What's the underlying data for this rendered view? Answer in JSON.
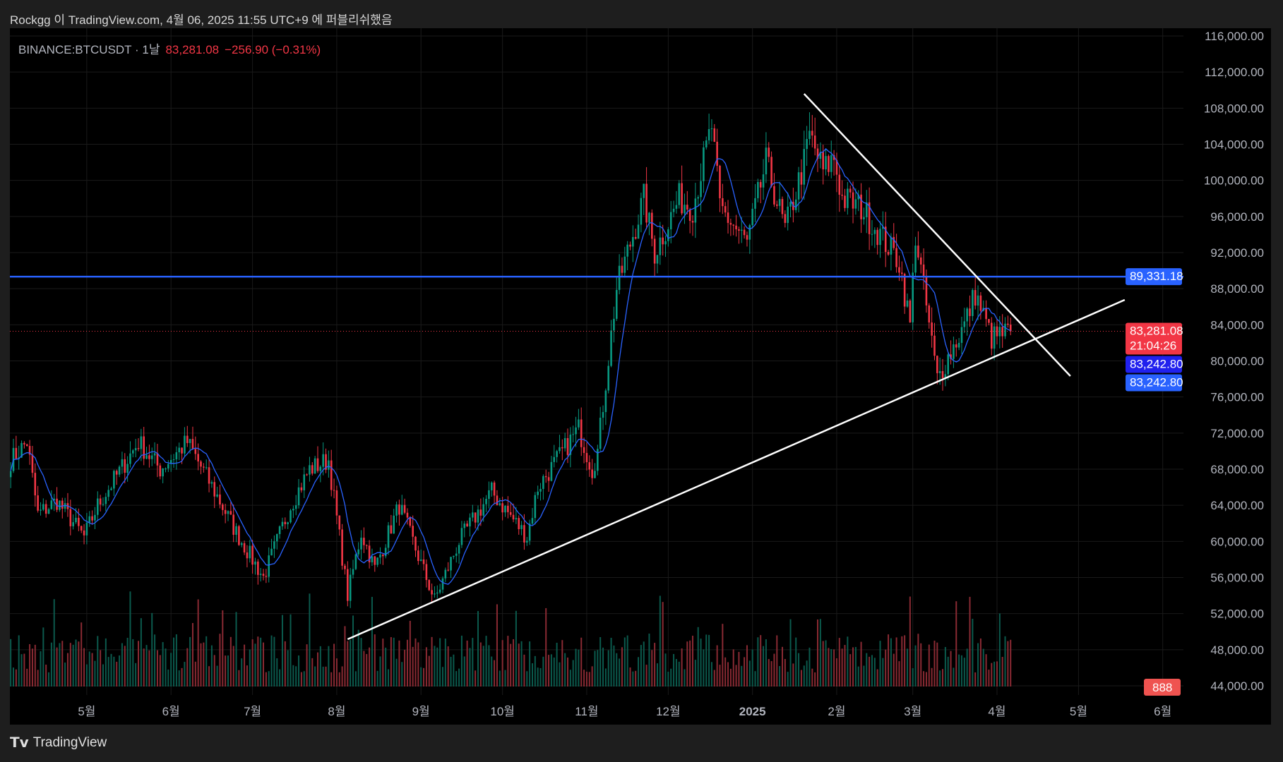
{
  "header": {
    "published": "Rockgg 이 TradingView.com, 4월 06, 2025 11:55 UTC+9 에 퍼블리쉬했음"
  },
  "legend": {
    "symbol": "BINANCE:BTCUSDT · 1날",
    "price": "83,281.08",
    "change": "−256.90 (−0.31%)"
  },
  "footer": {
    "brand": "TradingView"
  },
  "colors": {
    "up": "#089981",
    "down": "#f23645",
    "ma": "#2962ff",
    "hline": "#2962ff",
    "trend": "#ffffff"
  },
  "chart_data": {
    "type": "candlestick",
    "symbol": "BTCUSDT",
    "interval": "1D",
    "price_ticks": [
      "116,000.00",
      "112,000.00",
      "108,000.00",
      "104,000.00",
      "100,000.00",
      "96,000.00",
      "92,000.00",
      "88,000.00",
      "84,000.00",
      "80,000.00",
      "76,000.00",
      "72,000.00",
      "68,000.00",
      "64,000.00",
      "60,000.00",
      "56,000.00",
      "52,000.00",
      "48,000.00",
      "44,000.00"
    ],
    "ylim": [
      44000,
      116000
    ],
    "time_ticks": [
      {
        "label": "5월",
        "date": "2024-05-01"
      },
      {
        "label": "6월",
        "date": "2024-06-01"
      },
      {
        "label": "7월",
        "date": "2024-07-01"
      },
      {
        "label": "8월",
        "date": "2024-08-01"
      },
      {
        "label": "9월",
        "date": "2024-09-01"
      },
      {
        "label": "10월",
        "date": "2024-10-01"
      },
      {
        "label": "11월",
        "date": "2024-11-01"
      },
      {
        "label": "12월",
        "date": "2024-12-01"
      },
      {
        "label": "2025",
        "date": "2025-01-01"
      },
      {
        "label": "2월",
        "date": "2025-02-01"
      },
      {
        "label": "3월",
        "date": "2025-03-01"
      },
      {
        "label": "4월",
        "date": "2025-04-01"
      },
      {
        "label": "5월",
        "date": "2025-05-01"
      },
      {
        "label": "6월",
        "date": "2025-06-01"
      }
    ],
    "close_path": [
      [
        "2024-04-03",
        69000
      ],
      [
        "2024-04-09",
        71000
      ],
      [
        "2024-04-13",
        63000
      ],
      [
        "2024-04-20",
        64500
      ],
      [
        "2024-04-30",
        60500
      ],
      [
        "2024-05-05",
        64000
      ],
      [
        "2024-05-20",
        71000
      ],
      [
        "2024-05-28",
        68000
      ],
      [
        "2024-06-07",
        71000
      ],
      [
        "2024-06-18",
        65000
      ],
      [
        "2024-06-25",
        61000
      ],
      [
        "2024-07-05",
        56000
      ],
      [
        "2024-07-15",
        64000
      ],
      [
        "2024-07-22",
        68000
      ],
      [
        "2024-07-29",
        69000
      ],
      [
        "2024-08-05",
        54000
      ],
      [
        "2024-08-10",
        61000
      ],
      [
        "2024-08-15",
        57000
      ],
      [
        "2024-08-24",
        64000
      ],
      [
        "2024-09-06",
        53500
      ],
      [
        "2024-09-15",
        60000
      ],
      [
        "2024-09-27",
        65500
      ],
      [
        "2024-10-10",
        60500
      ],
      [
        "2024-10-14",
        66000
      ],
      [
        "2024-10-21",
        69000
      ],
      [
        "2024-10-29",
        72500
      ],
      [
        "2024-11-03",
        68000
      ],
      [
        "2024-11-05",
        70000
      ],
      [
        "2024-11-12",
        88000
      ],
      [
        "2024-11-22",
        98000
      ],
      [
        "2024-11-26",
        92000
      ],
      [
        "2024-12-05",
        98000
      ],
      [
        "2024-12-10",
        97000
      ],
      [
        "2024-12-17",
        106000
      ],
      [
        "2024-12-20",
        97000
      ],
      [
        "2024-12-30",
        93000
      ],
      [
        "2025-01-06",
        102000
      ],
      [
        "2025-01-13",
        94500
      ],
      [
        "2025-01-20",
        102000
      ],
      [
        "2025-01-22",
        105000
      ],
      [
        "2025-01-27",
        101000
      ],
      [
        "2025-01-31",
        102500
      ],
      [
        "2025-02-03",
        98000
      ],
      [
        "2025-02-10",
        97000
      ],
      [
        "2025-02-24",
        91000
      ],
      [
        "2025-02-28",
        84000
      ],
      [
        "2025-03-02",
        94000
      ],
      [
        "2025-03-10",
        78000
      ],
      [
        "2025-03-20",
        84000
      ],
      [
        "2025-03-24",
        87500
      ],
      [
        "2025-03-30",
        82500
      ],
      [
        "2025-04-06",
        83281.08
      ]
    ],
    "horizontal_line": {
      "price": 89331.18,
      "label": "89,331.18"
    },
    "trendlines": [
      {
        "name": "descending",
        "from": [
          "2025-01-20",
          109590
        ],
        "to": [
          "2025-04-28",
          78320
        ]
      },
      {
        "name": "ascending",
        "from": [
          "2024-08-05",
          49160
        ],
        "to": [
          "2025-05-18",
          86760
        ]
      }
    ],
    "last_price": {
      "price": 83281.08,
      "label": "83,281.08",
      "countdown": "21:04:26"
    },
    "ma_labels": [
      "83,242.80",
      "83,242.80"
    ],
    "volume_label": "888"
  }
}
